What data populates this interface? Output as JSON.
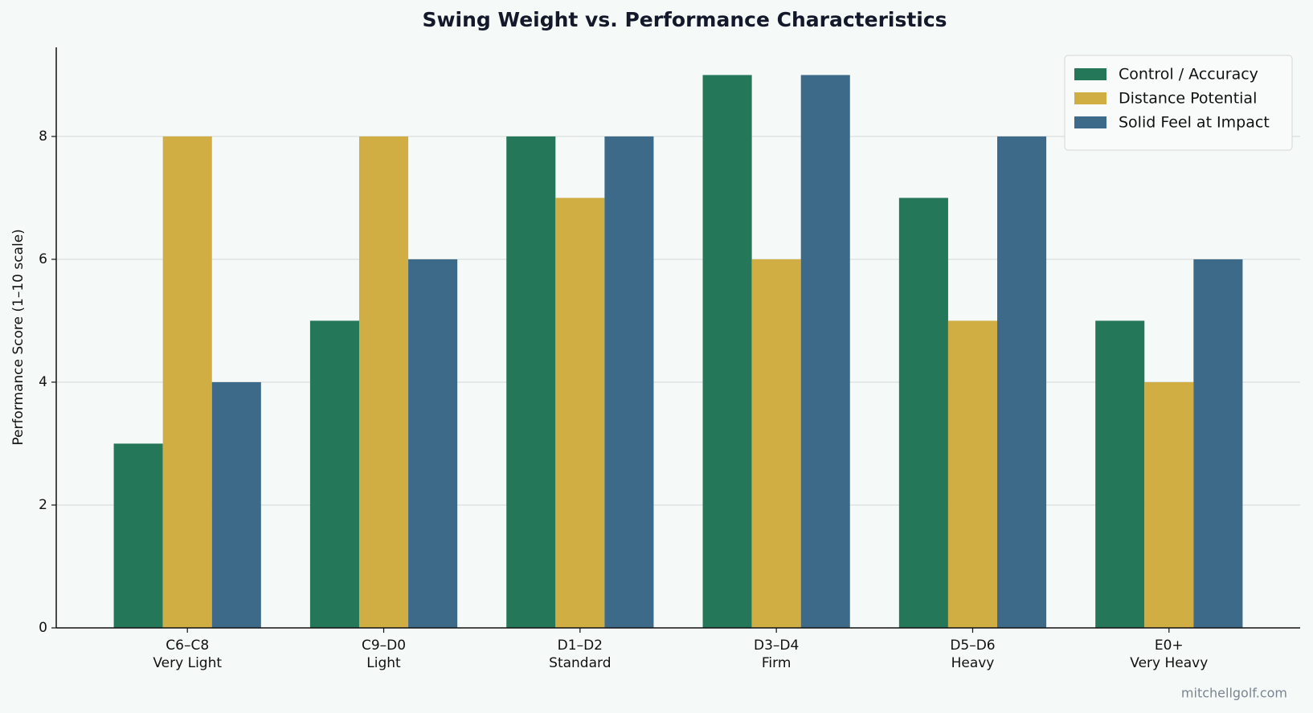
{
  "chart_data": {
    "type": "bar",
    "title": "Swing Weight vs. Performance Characteristics",
    "ylabel": "Performance Score (1–10 scale)",
    "categories": [
      [
        "C6–C8",
        "Very Light"
      ],
      [
        "C9–D0",
        "Light"
      ],
      [
        "D1–D2",
        "Standard"
      ],
      [
        "D3–D4",
        "Firm"
      ],
      [
        "D5–D6",
        "Heavy"
      ],
      [
        "E0+",
        "Very Heavy"
      ]
    ],
    "series": [
      {
        "name": "Control / Accuracy",
        "color": "#25775a",
        "values": [
          3,
          5,
          8,
          9,
          7,
          5
        ]
      },
      {
        "name": "Distance Potential",
        "color": "#d0ae44",
        "values": [
          8,
          8,
          7,
          6,
          5,
          4
        ]
      },
      {
        "name": "Solid Feel at Impact",
        "color": "#3d6a89",
        "values": [
          4,
          6,
          8,
          9,
          8,
          6
        ]
      }
    ],
    "ylim": [
      0,
      9.45
    ],
    "yticks": [
      0,
      2,
      4,
      6,
      8
    ],
    "grid": true,
    "legend": "upper right",
    "watermark": "mitchellgolf.com"
  }
}
